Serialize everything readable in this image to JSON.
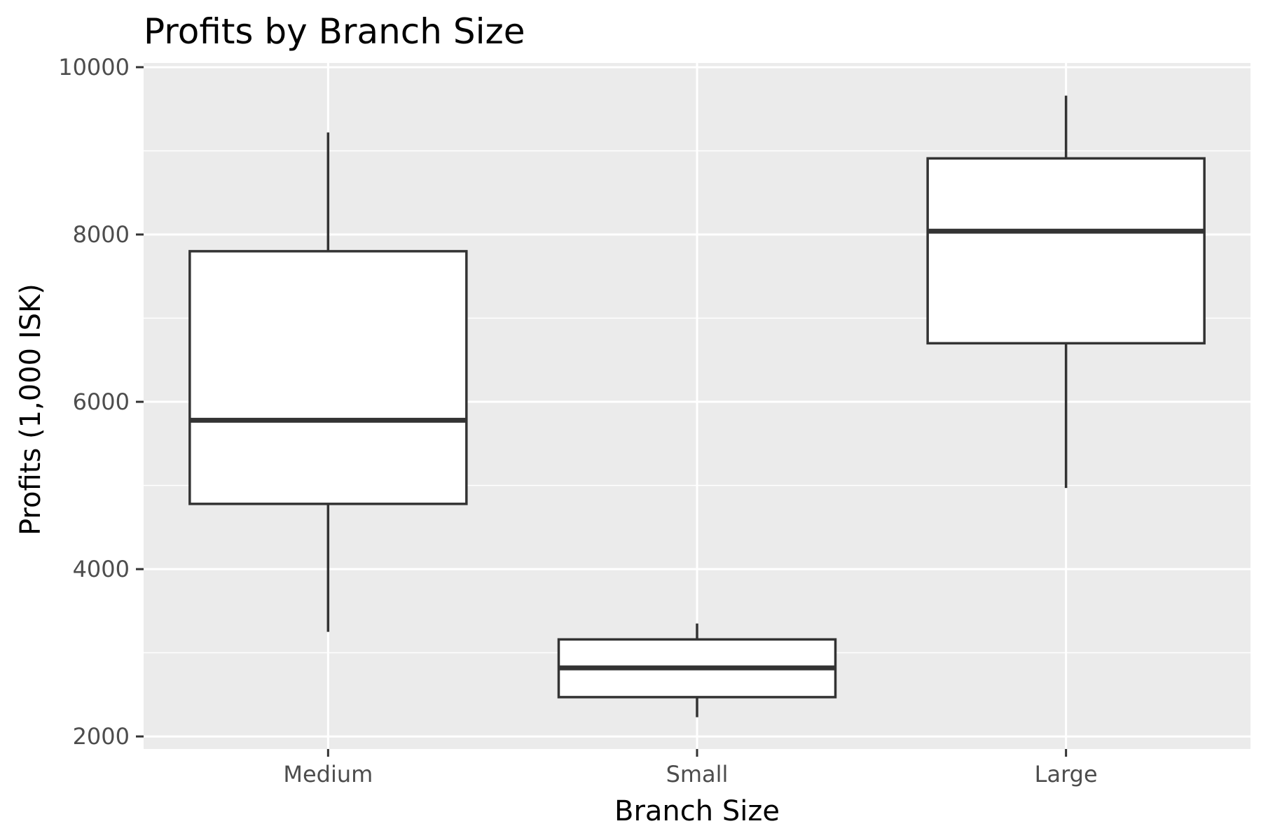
{
  "chart_data": {
    "type": "boxplot",
    "title": "Profits by Branch Size",
    "xlabel": "Branch Size",
    "ylabel": "Profits (1,000 ISK)",
    "ylim": [
      1850,
      10050
    ],
    "y_ticks": [
      2000,
      4000,
      6000,
      8000,
      10000
    ],
    "y_tick_labels": [
      "2000",
      "4000",
      "6000",
      "8000",
      "10000"
    ],
    "y_minor_ticks": [
      3000,
      5000,
      7000,
      9000
    ],
    "grid": true,
    "legend": "none",
    "categories": [
      "Medium",
      "Small",
      "Large"
    ],
    "boxes": [
      {
        "category": "Medium",
        "whisker_low": 3250,
        "q1": 4780,
        "median": 5780,
        "q3": 7800,
        "whisker_high": 9220
      },
      {
        "category": "Small",
        "whisker_low": 2230,
        "q1": 2470,
        "median": 2820,
        "q3": 3160,
        "whisker_high": 3350
      },
      {
        "category": "Large",
        "whisker_low": 4970,
        "q1": 6700,
        "median": 8040,
        "q3": 8910,
        "whisker_high": 9660
      }
    ],
    "colors": {
      "panel_background": "#ebebeb",
      "grid": "#ffffff",
      "box_fill": "#ffffff",
      "box_stroke": "#333333"
    }
  }
}
